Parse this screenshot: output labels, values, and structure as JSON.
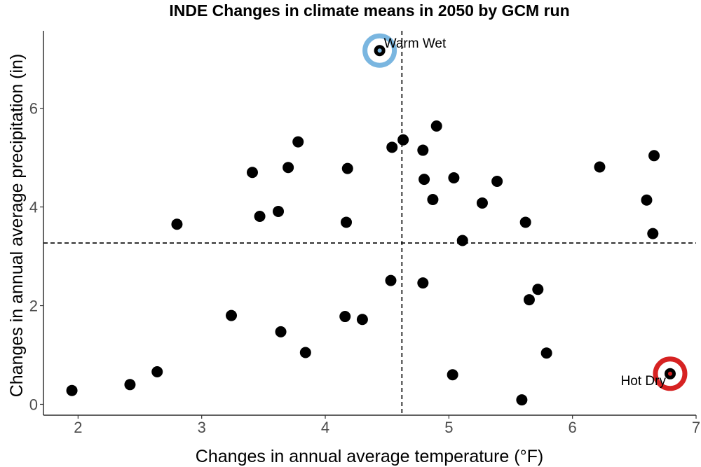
{
  "chart_data": {
    "type": "scatter",
    "title": "INDE Changes in climate means in 2050 by GCM run",
    "xlabel": "Changes in annual average temperature (°F)",
    "ylabel": "Changes in annual average precipitation (in)",
    "xlim": [
      1.72,
      7.0
    ],
    "ylim": [
      -0.22,
      7.57
    ],
    "xticks": [
      "2",
      "3",
      "4",
      "5",
      "6",
      "7"
    ],
    "yticks": [
      "0",
      "2",
      "4",
      "6"
    ],
    "grid": false,
    "reference_lines": {
      "x": 4.62,
      "y": 3.27
    },
    "points": [
      {
        "x": 1.95,
        "y": 0.28
      },
      {
        "x": 2.42,
        "y": 0.4
      },
      {
        "x": 2.64,
        "y": 0.66
      },
      {
        "x": 2.8,
        "y": 3.65
      },
      {
        "x": 3.24,
        "y": 1.8
      },
      {
        "x": 3.41,
        "y": 4.7
      },
      {
        "x": 3.47,
        "y": 3.81
      },
      {
        "x": 3.62,
        "y": 3.91
      },
      {
        "x": 3.64,
        "y": 1.47
      },
      {
        "x": 3.7,
        "y": 4.8
      },
      {
        "x": 3.78,
        "y": 5.32
      },
      {
        "x": 3.84,
        "y": 1.05
      },
      {
        "x": 4.16,
        "y": 1.78
      },
      {
        "x": 4.17,
        "y": 3.69
      },
      {
        "x": 4.18,
        "y": 4.78
      },
      {
        "x": 4.3,
        "y": 1.72
      },
      {
        "x": 4.44,
        "y": 7.17
      },
      {
        "x": 4.53,
        "y": 2.51
      },
      {
        "x": 4.54,
        "y": 5.21
      },
      {
        "x": 4.63,
        "y": 5.36
      },
      {
        "x": 4.79,
        "y": 2.46
      },
      {
        "x": 4.79,
        "y": 5.15
      },
      {
        "x": 4.8,
        "y": 4.56
      },
      {
        "x": 4.87,
        "y": 4.15
      },
      {
        "x": 4.9,
        "y": 5.64
      },
      {
        "x": 5.03,
        "y": 0.6
      },
      {
        "x": 5.04,
        "y": 4.59
      },
      {
        "x": 5.11,
        "y": 3.32
      },
      {
        "x": 5.27,
        "y": 4.08
      },
      {
        "x": 5.39,
        "y": 4.52
      },
      {
        "x": 5.59,
        "y": 0.09
      },
      {
        "x": 5.62,
        "y": 3.69
      },
      {
        "x": 5.65,
        "y": 2.12
      },
      {
        "x": 5.72,
        "y": 2.33
      },
      {
        "x": 5.79,
        "y": 1.04
      },
      {
        "x": 6.22,
        "y": 4.81
      },
      {
        "x": 6.6,
        "y": 4.14
      },
      {
        "x": 6.65,
        "y": 3.46
      },
      {
        "x": 6.66,
        "y": 5.04
      },
      {
        "x": 6.79,
        "y": 0.62
      }
    ],
    "highlights": [
      {
        "label": "Warm Wet",
        "x": 4.44,
        "y": 7.17,
        "color": "#7ab6e0"
      },
      {
        "label": "Hot Dry",
        "x": 6.79,
        "y": 0.62,
        "color": "#d62222"
      }
    ]
  }
}
